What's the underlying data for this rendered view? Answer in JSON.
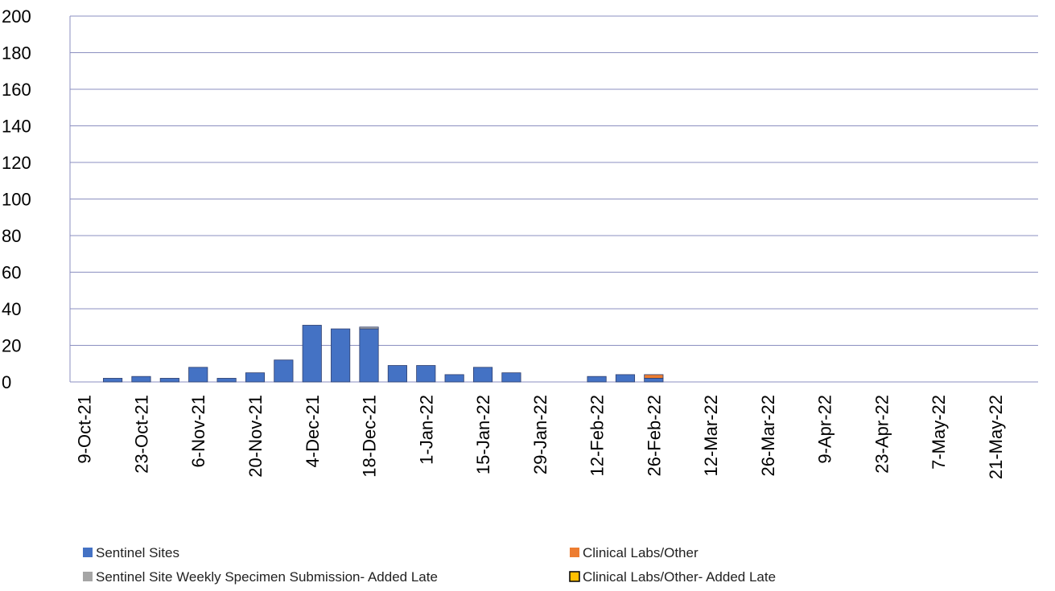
{
  "chart_data": {
    "type": "stacked_bar",
    "categories": [
      "9-Oct-21",
      null,
      "23-Oct-21",
      null,
      "6-Nov-21",
      null,
      "20-Nov-21",
      null,
      "4-Dec-21",
      null,
      "18-Dec-21",
      null,
      "1-Jan-22",
      null,
      "15-Jan-22",
      null,
      "29-Jan-22",
      null,
      "12-Feb-22",
      null,
      "26-Feb-22",
      null,
      "12-Mar-22",
      null,
      "26-Mar-22",
      null,
      "9-Apr-22",
      null,
      "23-Apr-22",
      null,
      "7-May-22",
      null,
      "21-May-22",
      null
    ],
    "series": [
      {
        "name": "Sentinel Sites",
        "color": "#4472c4",
        "values": [
          0,
          2,
          3,
          2,
          8,
          2,
          5,
          12,
          31,
          29,
          29,
          9,
          9,
          4,
          8,
          5,
          0,
          0,
          3,
          4,
          2,
          0,
          0,
          0,
          0,
          0,
          0,
          0,
          0,
          0,
          0,
          0,
          0,
          0
        ]
      },
      {
        "name": "Clinical Labs/Other",
        "color": "#ed7d31",
        "values": [
          0,
          0,
          0,
          0,
          0,
          0,
          0,
          0,
          0,
          0,
          0,
          0,
          0,
          0,
          0,
          0,
          0,
          0,
          0,
          0,
          2,
          0,
          0,
          0,
          0,
          0,
          0,
          0,
          0,
          0,
          0,
          0,
          0,
          0
        ]
      },
      {
        "name": "Sentinel Site Weekly Specimen Submission- Added Late",
        "color": "#a5a5a5",
        "values": [
          0,
          0,
          0,
          0,
          0,
          0,
          0,
          0,
          0,
          0,
          1,
          0,
          0,
          0,
          0,
          0,
          0,
          0,
          0,
          0,
          0,
          0,
          0,
          0,
          0,
          0,
          0,
          0,
          0,
          0,
          0,
          0,
          0,
          0
        ]
      },
      {
        "name": "Clinical Labs/Other- Added Late",
        "color": "#ffc000",
        "values": [
          0,
          0,
          0,
          0,
          0,
          0,
          0,
          0,
          0,
          0,
          0,
          0,
          0,
          0,
          0,
          0,
          0,
          0,
          0,
          0,
          0,
          0,
          0,
          0,
          0,
          0,
          0,
          0,
          0,
          0,
          0,
          0,
          0,
          0
        ]
      }
    ],
    "ylim": [
      0,
      200
    ],
    "yticks": [
      0,
      20,
      40,
      60,
      80,
      100,
      120,
      140,
      160,
      180,
      200
    ],
    "grid": true,
    "legend": "bottom"
  }
}
